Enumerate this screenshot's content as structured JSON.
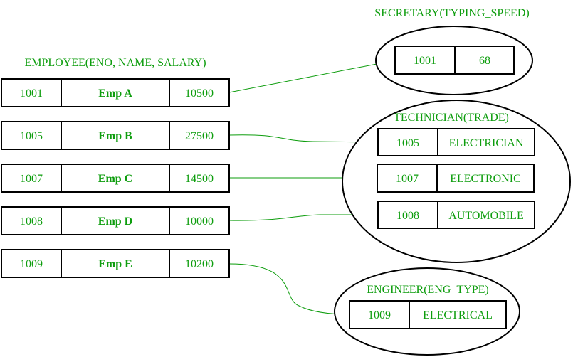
{
  "colors": {
    "text": "#0d9d0d",
    "border": "#000000",
    "connector": "#0d9d0d"
  },
  "employee": {
    "title": "EMPLOYEE(ENO, NAME, SALARY)",
    "rows": [
      {
        "eno": "1001",
        "name": "Emp A",
        "salary": "10500"
      },
      {
        "eno": "1005",
        "name": "Emp B",
        "salary": "27500"
      },
      {
        "eno": "1007",
        "name": "Emp C",
        "salary": "14500"
      },
      {
        "eno": "1008",
        "name": "Emp D",
        "salary": "10000"
      },
      {
        "eno": "1009",
        "name": "Emp E",
        "salary": "10200"
      }
    ]
  },
  "secretary": {
    "title": "SECRETARY(TYPING_SPEED)",
    "rows": [
      {
        "eno": "1001",
        "value": "68"
      }
    ]
  },
  "technician": {
    "title": "TECHNICIAN(TRADE)",
    "rows": [
      {
        "eno": "1005",
        "value": "ELECTRICIAN"
      },
      {
        "eno": "1007",
        "value": "ELECTRONIC"
      },
      {
        "eno": "1008",
        "value": "AUTOMOBILE"
      }
    ]
  },
  "engineer": {
    "title": "ENGINEER(ENG_TYPE)",
    "rows": [
      {
        "eno": "1009",
        "value": "ELECTRICAL"
      }
    ]
  }
}
